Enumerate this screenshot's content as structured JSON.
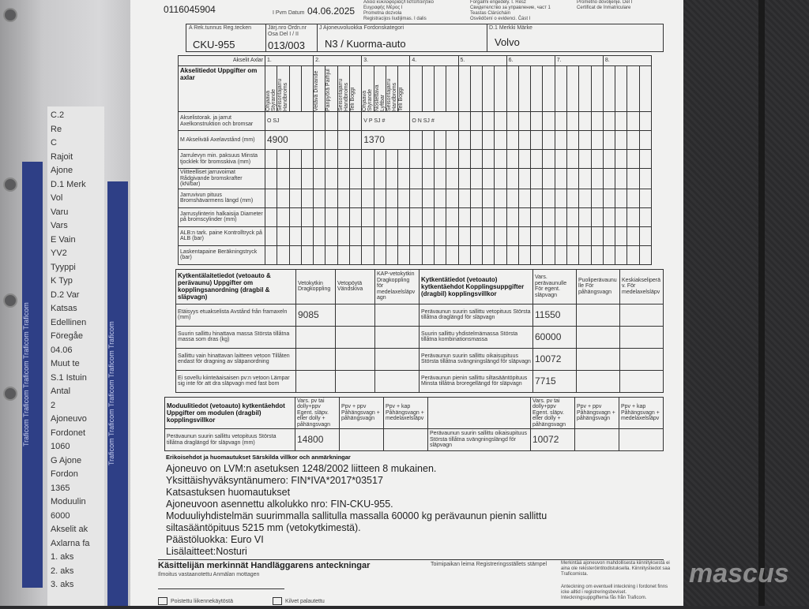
{
  "doc_number": "0116045904",
  "date_label": "I Pvm Datum",
  "date": "04.06.2025",
  "header_langs": [
    "Αδεια κυκλοφορίας/Πιστοποιητικό",
    "Ευγραφής Μέρος Ι",
    "Prometna dozvola",
    "Registracijos liudijimas. I dalis",
    "Forgalmi engedély. I. Rész",
    "Свидетелство за управление, част 1",
    "Teastas Clárúcháin",
    "Osvědčení o evidenci. Část I",
    "Prometno dovoljenje. Del I",
    "Certificat de înmatriculare"
  ],
  "reg": {
    "label": "A Rek.tunnus Reg.tecken",
    "value": "CKU-955"
  },
  "ordnr": {
    "label": "Järj.nro Ordn.nr Osa Del I / II",
    "value": "013/003"
  },
  "category": {
    "label": "J Ajoneuvoluokka Fordonskategori",
    "value": "N3 / Kuorma-auto"
  },
  "make": {
    "label": "D.1 Merkki Märke",
    "value": "Volvo"
  },
  "axles": {
    "header": "Akselit Axlar",
    "title": "Akselitiedot Uppgifter om axlar",
    "numbers": [
      "1.",
      "2.",
      "3.",
      "4.",
      "5.",
      "6.",
      "7.",
      "8."
    ],
    "sub_labels": [
      [
        "Ohjaava Styrande",
        "Seisontajarru Handbroms",
        "",
        ""
      ],
      [
        "Vetävä Drivande",
        "Paripyörä Parhjul",
        "Seisontajarru Handbroms",
        "Teli Boggi"
      ],
      [
        "Ohjaava Styrande",
        "Nostettava Lyftbar",
        "Seisontajarru Handbroms",
        "Teli Boggi"
      ]
    ],
    "rows": [
      {
        "label": "Akselistorak. ja jarrut Axelkonstruktion och bromsar",
        "values": [
          "O SJ",
          "",
          "V P SJ #",
          "O N SJ #"
        ]
      },
      {
        "label": "M Akseliväli Axelavstånd (mm)",
        "values": [
          "4900",
          "",
          "1370",
          ""
        ]
      },
      {
        "label": "Jarrulevyn min. paksuus Minsta tjocklek för bromsskiva (mm)",
        "values": []
      },
      {
        "label": "Viitteelliset jarruvoimat Rådgivande bromskrafter (kN/bar)",
        "values": []
      },
      {
        "label": "Jarruvivun pituus Bromshävarmens längd (mm)",
        "values": []
      },
      {
        "label": "Jarrusylinterin halkaisija Diameter på bromscylinder (mm)",
        "values": []
      },
      {
        "label": "ALB:n tark. paine Kontrolltryck på ALB (bar)",
        "values": []
      },
      {
        "label": "Laskentapaine Beräkningstryck (bar)",
        "values": []
      }
    ]
  },
  "coupling": {
    "title": "Kytkentälaitetiedot (vetoauto & perävaunu) Uppgifter om kopplingsanordning (dragbil & släpvagn)",
    "cols": [
      "Vetokytkin Dragkoppling",
      "Vetopöytä Vändskiva",
      "KAP-vetokytkin Dragkoppling för medelaxelsläpvagn"
    ],
    "title2": "Kytkentätiedot (vetoauto) kytkentäehdot Kopplingsuppgifter (dragbil) kopplingsvillkor",
    "cols2": [
      "Vars. perävaunulle För egent. släpvagn",
      "Puoliperävaunulle För påhängsvagn",
      "Keskiakseliperäv. För medelaxelsläpv"
    ],
    "rows": [
      {
        "label": "Etäisyys etuakselista Avstånd från framaxeln (mm)",
        "value": "9085",
        "label2": "Perävaunun suurin sallittu vetopituus Största tillåtna draglängd för släpvagn",
        "value2": "11550"
      },
      {
        "label": "Suurin sallittu hinattava massa Största tillåtna massa som dras (kg)",
        "value": "",
        "label2": "Suurin sallittu yhdistelmämassa Största tillåtna kombinationsmassa",
        "value2": "60000"
      },
      {
        "label": "Sallittu vain hinattavan laitteen vetoon Tillåten endast för dragning av släpanordning",
        "value": "",
        "label2": "Perävaunun suurin sallittu oikaisupituus Största tillåtna svängningslängd för släpvagn",
        "value2": "10072"
      },
      {
        "label": "Ei sovellu kiinteäaisaisen pv:n vetoon Lämpar sig inte för att dra släpvagn med fast bom",
        "value": "",
        "label2": "Perävaunun pienin sallittu siltasääntöpituus Minsta tillåtna broregellängd för släpvagn",
        "value2": "7715"
      }
    ]
  },
  "module": {
    "title": "Moduulitiedot (vetoauto) kytkentäehdot Uppgifter om modulen (dragbil) kopplingsvillkor",
    "cols": [
      "Vars. pv tai dolly+ppv Egent. släpv. eller dolly + påhängsvagn",
      "Ppv + ppv Påhängsvagn + påhängsvagn",
      "Ppv + kap Påhängsvagn + medelaxelsläpv"
    ],
    "row_label": "Perävaunun suurin sallittu vetopituus Största tillåtna draglängd för släpvagn (mm)",
    "value": "14800",
    "row_label2": "Perävaunun suurin sallittu oikaisupituus Största tillåtna svängningslängd för släpvagn",
    "value2": "10072"
  },
  "remarks": {
    "title": "Erikoisehdot ja huomautukset Särskilda villkor och anmärkningar",
    "lines": [
      "Ajoneuvo on LVM:n asetuksen 1248/2002 liitteen 8 mukainen.",
      "Yksittäishyväksyntänumero: FIN*IVA*2017*03517",
      "Katsastuksen huomautukset",
      "Ajoneuvoon asennettu alkolukko nro: FIN-CKU-955.",
      "Moduuliyhdistelmän suurimmalla sallitulla massalla 60000 kg perävaunun pienin sallittu",
      "siltasääntöpituus 5215 mm (vetokytkimestä).",
      "Päästöluokka: Euro VI",
      "Lisälaitteet:Nosturi"
    ]
  },
  "handler": {
    "title": "Käsittelijän merkinnät Handläggarens anteckningar",
    "received": "Ilmoitus vastaanotettu Anmälan mottagen",
    "stamp": "Toimipaikan leima Registreringsställets stämpel",
    "note1": "Merkintää ajoneuvon mahdollisesta kiinnityksestä ei aina ole rekisteröintitodistuksella. Kiinnitystiedot saa Traficomista.",
    "note2": "Anteckning om eventuell inteckning i fordonet finns icke alltid i registreringsbeviset. Inteckningsuppgifterna fås från Traficom.",
    "check1": "Poistettu liikennekäytöstä",
    "check2": "Kilvet palautettu"
  },
  "underlying_sheet": [
    "C.2",
    "Re",
    "C",
    "Rajoit",
    "Ajone",
    "D.1 Merk",
    "Vol",
    "Varu",
    "Vars",
    "E Vain",
    "YV2",
    "Tyyppi",
    "K Typ",
    "D.2 Var",
    "Katsas",
    "Edellinen",
    "Föregåe",
    "04.06",
    "Muut te",
    "S.1 Istuin",
    "Antal",
    "2",
    "Ajoneuvo",
    "Fordonet",
    "1060",
    "G Ajone",
    "Fordon",
    "1365",
    "Moduulin",
    "6000",
    "Akselit ak",
    "Axlarna fa",
    "1. aks",
    "2. aks",
    "3. aks"
  ],
  "strip_text": "Traficom Traficom Traficom Traficom Traficom",
  "watermark": "mascus"
}
